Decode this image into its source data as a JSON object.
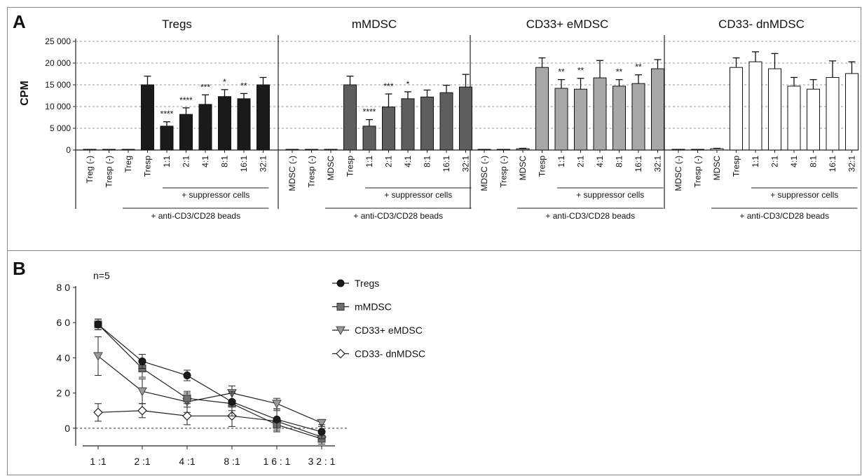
{
  "panel_a_label": "A",
  "panel_b_label": "B",
  "group_labels": [
    "Treg (-)",
    "Tresp (-)",
    "Treg",
    "Tresp",
    "1:1",
    "2:1",
    "4:1",
    "8:1",
    "16:1",
    "32:1"
  ],
  "chart_data": [
    {
      "type": "bar",
      "ylabel": "CPM",
      "ylim": [
        0,
        25000
      ],
      "yticks": [
        0,
        5000,
        10000,
        15000,
        20000,
        25000
      ],
      "ytick_labels": [
        "0",
        "5 000",
        "10 000",
        "15 000",
        "20 000",
        "25 000"
      ],
      "grid": true,
      "panels": [
        {
          "title": "Tregs",
          "color": "#1a1a1a",
          "categories": [
            "Treg (-)",
            "Tresp (-)",
            "Treg",
            "Tresp",
            "1:1",
            "2:1",
            "4:1",
            "8:1",
            "16:1",
            "32:1"
          ],
          "values": [
            100,
            100,
            100,
            15000,
            5500,
            8200,
            10500,
            12300,
            11800,
            15000
          ],
          "errors": [
            0,
            0,
            0,
            2000,
            1000,
            1500,
            2200,
            1600,
            1200,
            1700
          ],
          "significance": [
            "",
            "",
            "",
            "",
            "****",
            "****",
            "***",
            "*",
            "**",
            ""
          ],
          "bracket_suppressor": "+ suppressor cells",
          "bracket_beads": "+ anti-CD3/CD28 beads"
        },
        {
          "title": "mMDSC",
          "color": "#5e5e5e",
          "categories": [
            "MDSC (-)",
            "Tresp (-)",
            "MDSC",
            "Tresp",
            "1:1",
            "2:1",
            "4:1",
            "8:1",
            "16:1",
            "32:1"
          ],
          "values": [
            100,
            100,
            100,
            15000,
            5500,
            9900,
            11800,
            12200,
            13200,
            14500
          ],
          "errors": [
            0,
            0,
            0,
            2000,
            1500,
            3000,
            1600,
            1600,
            1700,
            2900
          ],
          "significance": [
            "",
            "",
            "",
            "",
            "****",
            "***",
            "*",
            "",
            "",
            ""
          ],
          "bracket_suppressor": "+ suppressor cells",
          "bracket_beads": "+ anti-CD3/CD28 beads"
        },
        {
          "title": "CD33+ eMDSC",
          "color": "#a8a8a8",
          "categories": [
            "MDSC (-)",
            "Tresp (-)",
            "MDSC",
            "Tresp",
            "1:1",
            "2:1",
            "4:1",
            "8:1",
            "16:1",
            "32:1"
          ],
          "values": [
            100,
            100,
            300,
            19000,
            14200,
            14000,
            16600,
            14700,
            15300,
            18700
          ],
          "errors": [
            0,
            0,
            100,
            2200,
            2000,
            2500,
            4000,
            1500,
            2000,
            2100
          ],
          "significance": [
            "",
            "",
            "",
            "",
            "**",
            "**",
            "",
            "**",
            "**",
            ""
          ],
          "bracket_suppressor": "+ suppressor cells",
          "bracket_beads": "+ anti-CD3/CD28 beads"
        },
        {
          "title": "CD33- dnMDSC",
          "color": "#ffffff",
          "categories": [
            "MDSC (-)",
            "Tresp (-)",
            "MDSC",
            "Tresp",
            "1:1",
            "2:1",
            "4:1",
            "8:1",
            "16:1",
            "32:1"
          ],
          "values": [
            100,
            100,
            300,
            19000,
            20300,
            18700,
            14700,
            14000,
            16700,
            17600
          ],
          "errors": [
            0,
            0,
            100,
            2200,
            2300,
            3500,
            2000,
            2200,
            3800,
            2700
          ],
          "significance": [
            "",
            "",
            "",
            "",
            "",
            "",
            "",
            "",
            "",
            ""
          ],
          "bracket_suppressor": "+ suppressor cells",
          "bracket_beads": "+ anti-CD3/CD28 beads"
        }
      ]
    },
    {
      "type": "line",
      "annotation": "n=5",
      "categories": [
        "1 :1",
        "2 :1",
        "4 :1",
        "8 :1",
        "1 6 : 1",
        "3 2 : 1"
      ],
      "ylim": [
        -10,
        80
      ],
      "yticks": [
        0,
        20,
        40,
        60,
        80
      ],
      "ytick_labels": [
        "0",
        "2 0",
        "4 0",
        "6 0",
        "8 0"
      ],
      "reference_line": 0,
      "legend_position": "top-right",
      "series": [
        {
          "name": "Tregs",
          "marker": "circle",
          "color": "#1a1a1a",
          "values": [
            59,
            38,
            30,
            15,
            5,
            -2
          ],
          "errors": [
            3,
            4,
            3,
            5,
            6,
            4
          ]
        },
        {
          "name": "mMDSC",
          "marker": "square",
          "color": "#6e6e6e",
          "values": [
            59,
            34,
            17,
            14,
            2,
            -6
          ],
          "errors": [
            3,
            5,
            3,
            7,
            4,
            3
          ]
        },
        {
          "name": "CD33+ eMDSC",
          "marker": "triangle-down",
          "color": "#9a9a9a",
          "values": [
            41,
            21,
            15,
            20,
            14,
            3
          ],
          "errors": [
            11,
            7,
            6,
            4,
            3,
            2
          ]
        },
        {
          "name": "CD33- dnMDSC",
          "marker": "diamond",
          "color": "#ffffff",
          "values": [
            9,
            10,
            7,
            7,
            4,
            -5
          ],
          "errors": [
            5,
            4,
            5,
            6,
            6,
            2
          ]
        }
      ]
    }
  ]
}
